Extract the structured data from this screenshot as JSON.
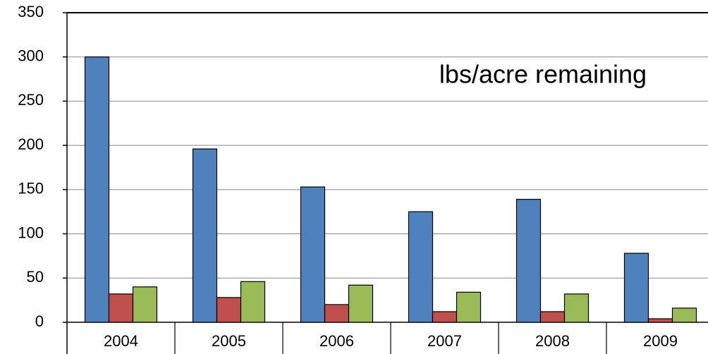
{
  "chart_data": {
    "type": "bar",
    "annotation": "lbs/acre remaining",
    "categories": [
      "2004",
      "2005",
      "2006",
      "2007",
      "2008",
      "2009"
    ],
    "series": [
      {
        "color": "#4f81bd",
        "values": [
          300,
          196,
          153,
          125,
          139,
          78
        ]
      },
      {
        "color": "#c0504d",
        "values": [
          32,
          28,
          20,
          12,
          12,
          4
        ]
      },
      {
        "color": "#9bbb59",
        "values": [
          40,
          46,
          42,
          34,
          32,
          16
        ]
      }
    ],
    "ylim": [
      0,
      350
    ],
    "yticks": [
      0,
      50,
      100,
      150,
      200,
      250,
      300,
      350
    ],
    "grid": true
  }
}
